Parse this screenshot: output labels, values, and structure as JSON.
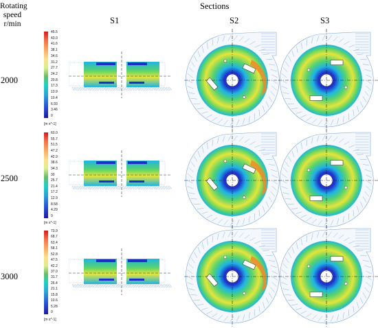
{
  "header": {
    "row_axis_line1": "Rotating",
    "row_axis_line2": "speed",
    "row_axis_line3": "r/min",
    "sections_title": "Sections",
    "columns": [
      "S1",
      "S2",
      "S3"
    ]
  },
  "rows": [
    {
      "speed": "2000",
      "legend_ticks": [
        "45.5",
        "43.0",
        "41.6",
        "38.1",
        "34.6",
        "31.2",
        "27.7",
        "24.2",
        "20.8",
        "17.3",
        "13.9",
        "10.4",
        "6.93",
        "3.46",
        "0"
      ],
      "unit": "[m s^-1]"
    },
    {
      "speed": "2500",
      "legend_ticks": [
        "60.0",
        "55.7",
        "51.5",
        "47.2",
        "42.9",
        "38.6",
        "34.3",
        "30",
        "25.7",
        "21.4",
        "17.2",
        "12.9",
        "8.58",
        "4.29",
        "0"
      ],
      "unit": "[m s^-1]"
    },
    {
      "speed": "3000",
      "legend_ticks": [
        "73.9",
        "68.7",
        "63.4",
        "58.1",
        "52.8",
        "47.5",
        "42.2",
        "37.0",
        "31.7",
        "26.4",
        "21.1",
        "15.8",
        "10.6",
        "5.28",
        "0"
      ],
      "unit": "[m s^-1]"
    }
  ],
  "colors": {
    "ring_outer": "#1fb4e4",
    "ring_mid": "#57d36d",
    "ring_yellow": "#e5e53a",
    "hub": "#1e2ec8",
    "hub_core": "#3a7bf2",
    "hot": "#f08a2a",
    "vector_lines": "#7fa6d8"
  }
}
